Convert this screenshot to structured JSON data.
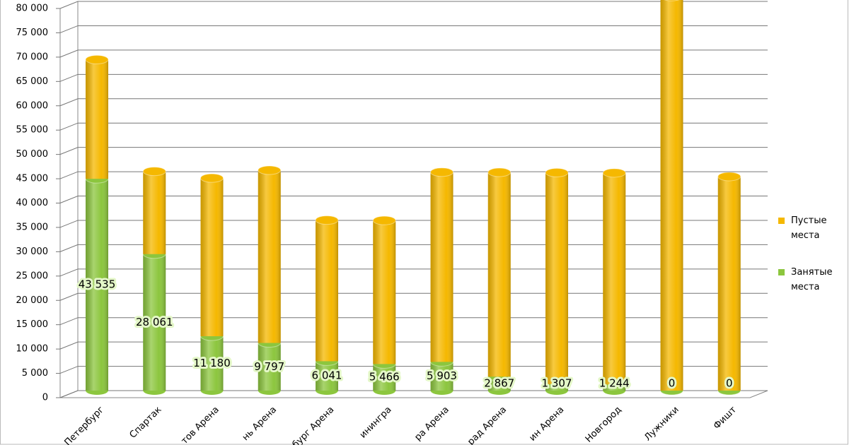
{
  "chart_data": {
    "type": "bar3d-stacked",
    "categories": [
      "Петербург",
      "Спартак",
      "тов Арена",
      "нь Арена",
      "бург Арена",
      "инингра",
      "ра Арена",
      "рад Арена",
      "ин Арена",
      "Новгород",
      "Лужники",
      "Фишт"
    ],
    "series": [
      {
        "name": "Занятые места",
        "color": "#8cc63e",
        "values": [
          43535,
          28061,
          11180,
          9797,
          6041,
          5466,
          5903,
          2867,
          1307,
          1244,
          0,
          0
        ],
        "value_labels": [
          "43 535",
          "28 061",
          "11 180",
          "9 797",
          "6 041",
          "5 466",
          "5 903",
          "2 867",
          "1 307",
          "1 244",
          "0",
          "0"
        ]
      },
      {
        "name": "Пустые места",
        "color": "#f5b800",
        "values": [
          24500,
          17000,
          32500,
          35500,
          29000,
          29500,
          39000,
          42000,
          43500,
          43500,
          81000,
          44000
        ]
      }
    ],
    "ylim": [
      0,
      80000
    ],
    "yticks": [
      0,
      {
        "value": 5000,
        "label": "5 000"
      },
      {
        "value": 10000,
        "label": "10 000"
      },
      {
        "value": 15000,
        "label": "15 000"
      },
      {
        "value": 20000,
        "label": "20 000"
      },
      {
        "value": 25000,
        "label": "25 000"
      },
      {
        "value": 30000,
        "label": "30 000"
      },
      {
        "value": 35000,
        "label": "35 000"
      },
      {
        "value": 40000,
        "label": "40 000"
      },
      {
        "value": 45000,
        "label": "45 000"
      },
      {
        "value": 50000,
        "label": "50 000"
      },
      {
        "value": 55000,
        "label": "55 000"
      },
      {
        "value": 60000,
        "label": "60 000"
      },
      {
        "value": 65000,
        "label": "65 000"
      },
      {
        "value": 70000,
        "label": "70 000"
      },
      {
        "value": 75000,
        "label": "75 000"
      },
      {
        "value": 80000,
        "label": "80 000"
      }
    ],
    "grid": true,
    "legend": "right"
  }
}
